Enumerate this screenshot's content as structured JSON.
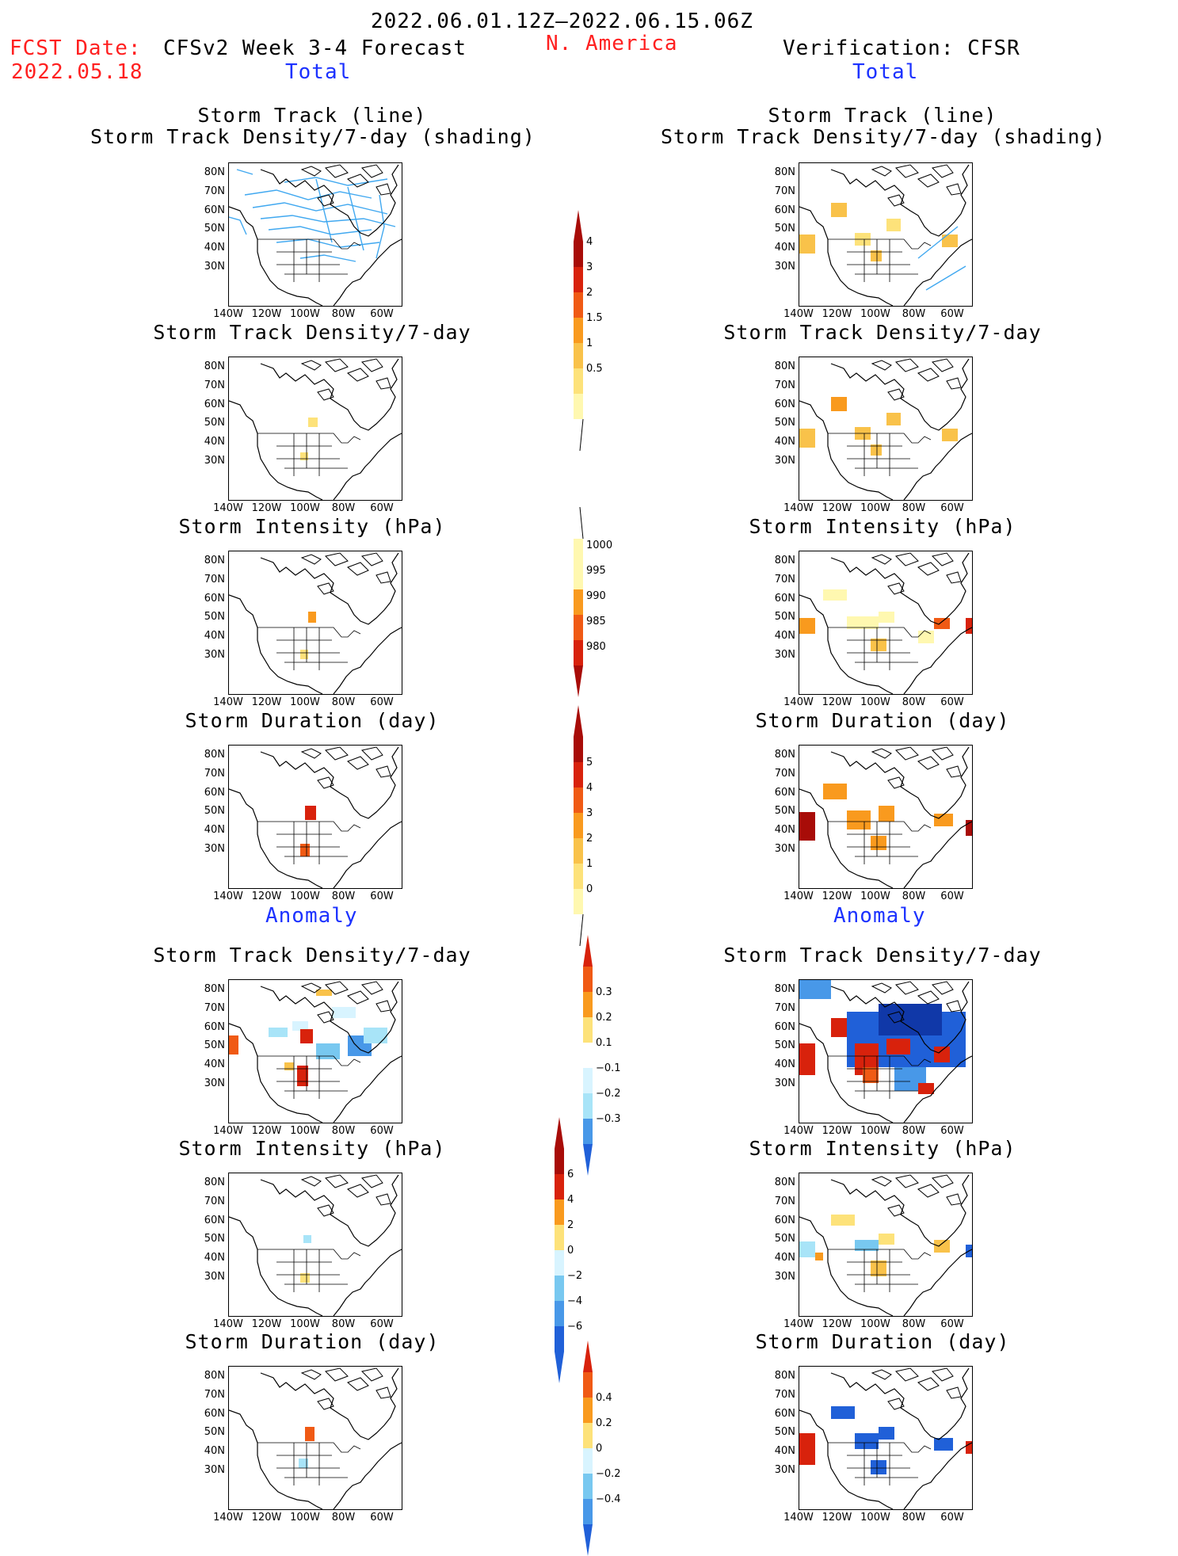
{
  "header": {
    "period": "2022.06.01.12Z–2022.06.15.06Z",
    "fcst_label": "FCST Date:",
    "fcst_date": "2022.05.18",
    "model": "CFSv2 Week 3-4 Forecast",
    "region": "N. America",
    "verification": "Verification: CFSR"
  },
  "sections": {
    "total": "Total",
    "anomaly": "Anomaly"
  },
  "panel_titles": {
    "track_line": "Storm Track (line)",
    "track_shading": "Storm Track Density/7-day (shading)",
    "density": "Storm Track Density/7-day",
    "intensity": "Storm Intensity (hPa)",
    "duration": "Storm Duration (day)"
  },
  "lat_labels": [
    "80N",
    "70N",
    "60N",
    "50N",
    "40N",
    "30N"
  ],
  "lon_labels": [
    "140W",
    "120W",
    "100W",
    "80W",
    "60W"
  ],
  "colorbars": {
    "density_total": [
      "0.5",
      "1",
      "1.5",
      "2",
      "3",
      "4"
    ],
    "intensity_total": [
      "1000",
      "995",
      "990",
      "985",
      "980"
    ],
    "duration_total": [
      "0",
      "1",
      "2",
      "3",
      "4",
      "5"
    ],
    "density_anom": [
      "0.3",
      "0.2",
      "0.1",
      "−0.1",
      "−0.2",
      "−0.3"
    ],
    "intensity_anom": [
      "6",
      "4",
      "2",
      "0",
      "−2",
      "−4",
      "−6"
    ],
    "duration_anom": [
      "0.4",
      "0.2",
      "0",
      "−0.2",
      "−0.4"
    ]
  },
  "colors": {
    "warm": [
      "#fff8b0",
      "#fde27a",
      "#f9c24a",
      "#f99a1e",
      "#f05a14",
      "#d8220c",
      "#a80c08"
    ],
    "cool": [
      "#d8f4ff",
      "#a8e4f8",
      "#78c8f0",
      "#4898e8",
      "#2060d8",
      "#1038a8"
    ],
    "track_line": "#40a8f0",
    "header_red": "#ff2020",
    "header_blue": "#1c32ff"
  }
}
